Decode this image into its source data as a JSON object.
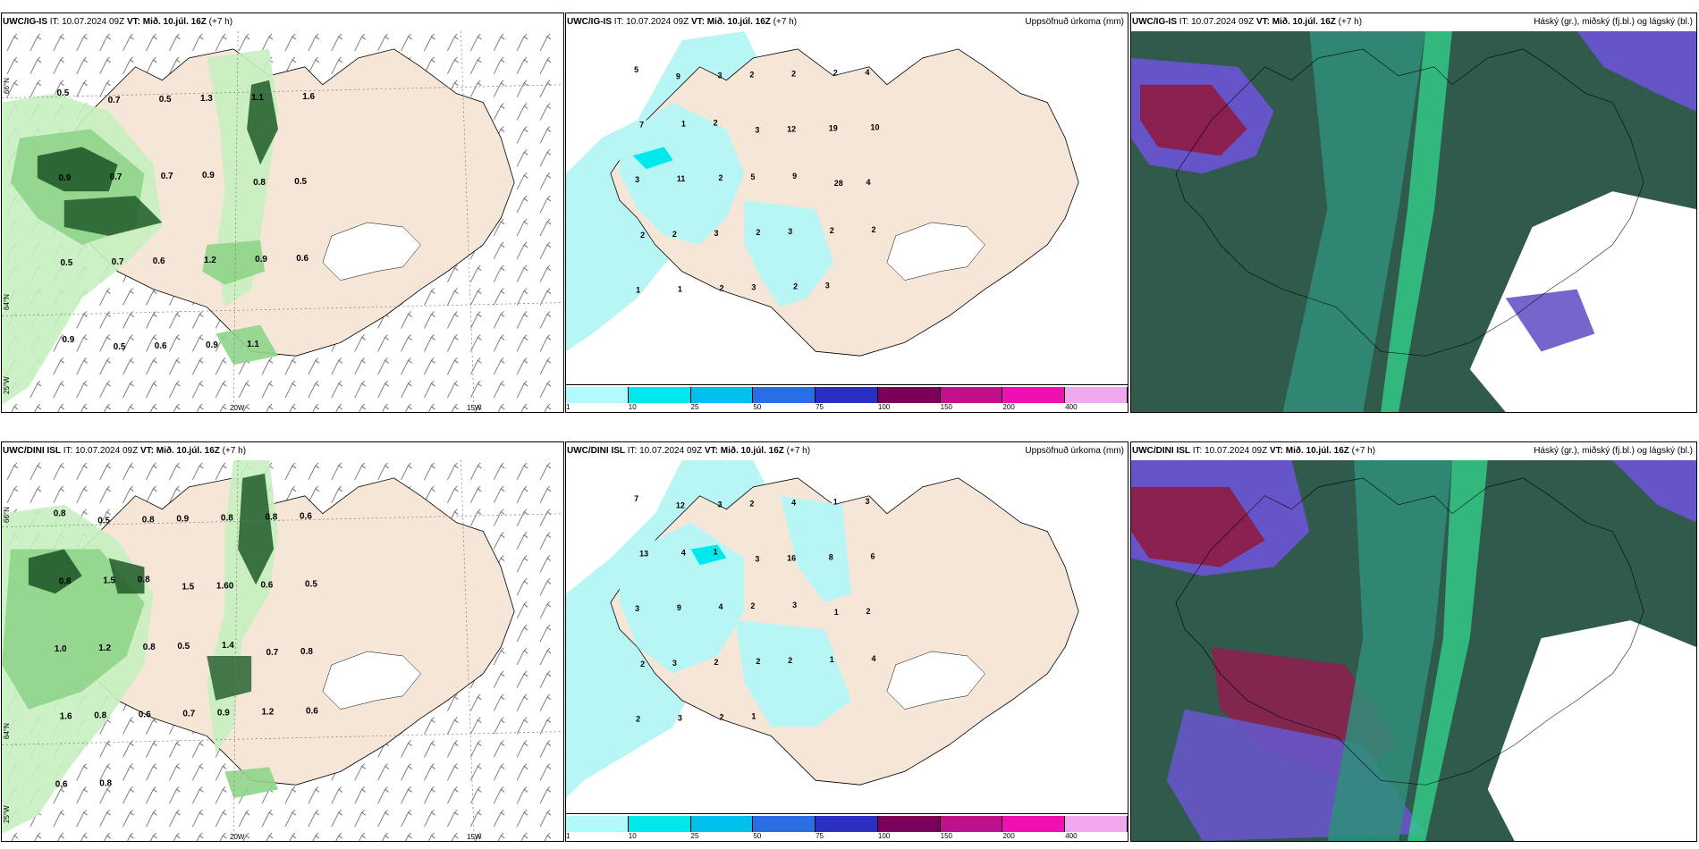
{
  "rows": [
    {
      "model": "UWC/IG-IS",
      "it": "IT: 10.07.2024 09Z",
      "vt_label": "VT:",
      "vt": "Mið. 10.júl. 16Z",
      "lead": "(+7 h)",
      "wind_labels": [
        "0.5",
        "0.7",
        "0.5",
        "1.3",
        "1.1",
        "1.6",
        "0.9",
        "0.7",
        "0.7",
        "0.9",
        "0.8",
        "0.5",
        "0.5",
        "0.7",
        "0.6",
        "1.2",
        "0.9",
        "0.6",
        "0.9",
        "0.5",
        "0.6",
        "0.9",
        "1.1"
      ],
      "precip_labels": [
        "5",
        "9",
        "3",
        "2",
        "2",
        "2",
        "4",
        "7",
        "1",
        "2",
        "3",
        "12",
        "19",
        "10",
        "3",
        "11",
        "2",
        "5",
        "9",
        "28",
        "4",
        "2",
        "2",
        "3",
        "2",
        "3",
        "2",
        "2",
        "1",
        "1",
        "2",
        "3",
        "2",
        "3"
      ]
    },
    {
      "model": "UWC/DINI ISL",
      "it": "IT: 10.07.2024 09Z",
      "vt_label": "VT:",
      "vt": "Mið. 10.júl. 16Z",
      "lead": "(+7 h)",
      "wind_labels": [
        "0.8",
        "0.5",
        "0.8",
        "0.9",
        "0.8",
        "0.8",
        "0.6",
        "0.8",
        "1.5",
        "0.8",
        "1.5",
        "1.60",
        "0.6",
        "0.5",
        "1.0",
        "1.2",
        "0.8",
        "0.5",
        "1.4",
        "0.7",
        "0.8",
        "1.6",
        "0.8",
        "0.6",
        "0.7",
        "0.9",
        "1.2",
        "0.6",
        "0.6",
        "0.8"
      ],
      "precip_labels": [
        "7",
        "12",
        "3",
        "2",
        "4",
        "1",
        "3",
        "13",
        "4",
        "1",
        "3",
        "16",
        "8",
        "6",
        "3",
        "9",
        "4",
        "2",
        "3",
        "1",
        "2",
        "2",
        "3",
        "2",
        "2",
        "2",
        "1",
        "4",
        "2",
        "3",
        "2",
        "1"
      ]
    }
  ],
  "axes": {
    "lat_66": "66°N",
    "lat_64": "64°N",
    "lon_25": "25°W",
    "lon_20": "20W",
    "lon_15": "15W"
  },
  "precip_title": "Uppsöfnuð úrkoma (mm)",
  "cloud_title": "Háský (gr.), miðský (fj.bl.) og lágský (bl.)",
  "colorbar": {
    "ticks": [
      "1",
      "10",
      "25",
      "50",
      "75",
      "100",
      "150",
      "200",
      "400"
    ],
    "colors": [
      "#b3fafa",
      "#00e8ec",
      "#00c0ee",
      "#2a6ee6",
      "#2b2ec2",
      "#7a005a",
      "#c0108c",
      "#f010b0",
      "#f2a8ee"
    ]
  },
  "colors": {
    "land": "#f5e6d8",
    "precip_light": "#b8f6f6",
    "precip_mid": "#7de8f0",
    "wind_light": "#c8f0c0",
    "wind_mid": "#8fd48a",
    "wind_dark": "#1f5a2a",
    "cloud_dark": "#2f5a4c",
    "cloud_teal": "#2f8f7a",
    "cloud_purple": "#6655c8",
    "cloud_red": "#8a2050",
    "cloud_green": "#33d08a"
  }
}
